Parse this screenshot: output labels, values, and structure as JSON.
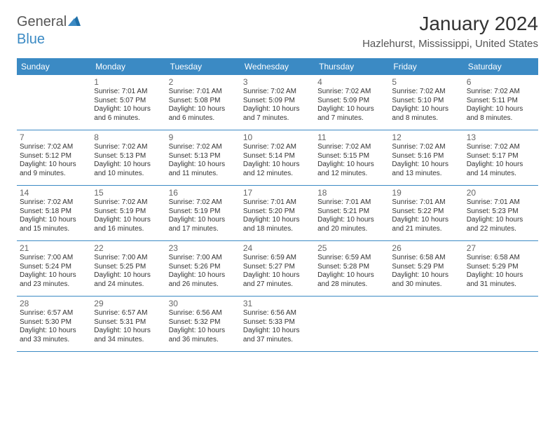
{
  "logo": {
    "word1": "General",
    "word2": "Blue"
  },
  "title": "January 2024",
  "location": "Hazlehurst, Mississippi, United States",
  "colors": {
    "accent": "#3b8ac4",
    "text": "#333333",
    "muted": "#666666",
    "background": "#ffffff"
  },
  "daysOfWeek": [
    "Sunday",
    "Monday",
    "Tuesday",
    "Wednesday",
    "Thursday",
    "Friday",
    "Saturday"
  ],
  "weeks": [
    [
      {
        "n": "",
        "sr": "",
        "ss": "",
        "dl1": "",
        "dl2": ""
      },
      {
        "n": "1",
        "sr": "Sunrise: 7:01 AM",
        "ss": "Sunset: 5:07 PM",
        "dl1": "Daylight: 10 hours",
        "dl2": "and 6 minutes."
      },
      {
        "n": "2",
        "sr": "Sunrise: 7:01 AM",
        "ss": "Sunset: 5:08 PM",
        "dl1": "Daylight: 10 hours",
        "dl2": "and 6 minutes."
      },
      {
        "n": "3",
        "sr": "Sunrise: 7:02 AM",
        "ss": "Sunset: 5:09 PM",
        "dl1": "Daylight: 10 hours",
        "dl2": "and 7 minutes."
      },
      {
        "n": "4",
        "sr": "Sunrise: 7:02 AM",
        "ss": "Sunset: 5:09 PM",
        "dl1": "Daylight: 10 hours",
        "dl2": "and 7 minutes."
      },
      {
        "n": "5",
        "sr": "Sunrise: 7:02 AM",
        "ss": "Sunset: 5:10 PM",
        "dl1": "Daylight: 10 hours",
        "dl2": "and 8 minutes."
      },
      {
        "n": "6",
        "sr": "Sunrise: 7:02 AM",
        "ss": "Sunset: 5:11 PM",
        "dl1": "Daylight: 10 hours",
        "dl2": "and 8 minutes."
      }
    ],
    [
      {
        "n": "7",
        "sr": "Sunrise: 7:02 AM",
        "ss": "Sunset: 5:12 PM",
        "dl1": "Daylight: 10 hours",
        "dl2": "and 9 minutes."
      },
      {
        "n": "8",
        "sr": "Sunrise: 7:02 AM",
        "ss": "Sunset: 5:13 PM",
        "dl1": "Daylight: 10 hours",
        "dl2": "and 10 minutes."
      },
      {
        "n": "9",
        "sr": "Sunrise: 7:02 AM",
        "ss": "Sunset: 5:13 PM",
        "dl1": "Daylight: 10 hours",
        "dl2": "and 11 minutes."
      },
      {
        "n": "10",
        "sr": "Sunrise: 7:02 AM",
        "ss": "Sunset: 5:14 PM",
        "dl1": "Daylight: 10 hours",
        "dl2": "and 12 minutes."
      },
      {
        "n": "11",
        "sr": "Sunrise: 7:02 AM",
        "ss": "Sunset: 5:15 PM",
        "dl1": "Daylight: 10 hours",
        "dl2": "and 12 minutes."
      },
      {
        "n": "12",
        "sr": "Sunrise: 7:02 AM",
        "ss": "Sunset: 5:16 PM",
        "dl1": "Daylight: 10 hours",
        "dl2": "and 13 minutes."
      },
      {
        "n": "13",
        "sr": "Sunrise: 7:02 AM",
        "ss": "Sunset: 5:17 PM",
        "dl1": "Daylight: 10 hours",
        "dl2": "and 14 minutes."
      }
    ],
    [
      {
        "n": "14",
        "sr": "Sunrise: 7:02 AM",
        "ss": "Sunset: 5:18 PM",
        "dl1": "Daylight: 10 hours",
        "dl2": "and 15 minutes."
      },
      {
        "n": "15",
        "sr": "Sunrise: 7:02 AM",
        "ss": "Sunset: 5:19 PM",
        "dl1": "Daylight: 10 hours",
        "dl2": "and 16 minutes."
      },
      {
        "n": "16",
        "sr": "Sunrise: 7:02 AM",
        "ss": "Sunset: 5:19 PM",
        "dl1": "Daylight: 10 hours",
        "dl2": "and 17 minutes."
      },
      {
        "n": "17",
        "sr": "Sunrise: 7:01 AM",
        "ss": "Sunset: 5:20 PM",
        "dl1": "Daylight: 10 hours",
        "dl2": "and 18 minutes."
      },
      {
        "n": "18",
        "sr": "Sunrise: 7:01 AM",
        "ss": "Sunset: 5:21 PM",
        "dl1": "Daylight: 10 hours",
        "dl2": "and 20 minutes."
      },
      {
        "n": "19",
        "sr": "Sunrise: 7:01 AM",
        "ss": "Sunset: 5:22 PM",
        "dl1": "Daylight: 10 hours",
        "dl2": "and 21 minutes."
      },
      {
        "n": "20",
        "sr": "Sunrise: 7:01 AM",
        "ss": "Sunset: 5:23 PM",
        "dl1": "Daylight: 10 hours",
        "dl2": "and 22 minutes."
      }
    ],
    [
      {
        "n": "21",
        "sr": "Sunrise: 7:00 AM",
        "ss": "Sunset: 5:24 PM",
        "dl1": "Daylight: 10 hours",
        "dl2": "and 23 minutes."
      },
      {
        "n": "22",
        "sr": "Sunrise: 7:00 AM",
        "ss": "Sunset: 5:25 PM",
        "dl1": "Daylight: 10 hours",
        "dl2": "and 24 minutes."
      },
      {
        "n": "23",
        "sr": "Sunrise: 7:00 AM",
        "ss": "Sunset: 5:26 PM",
        "dl1": "Daylight: 10 hours",
        "dl2": "and 26 minutes."
      },
      {
        "n": "24",
        "sr": "Sunrise: 6:59 AM",
        "ss": "Sunset: 5:27 PM",
        "dl1": "Daylight: 10 hours",
        "dl2": "and 27 minutes."
      },
      {
        "n": "25",
        "sr": "Sunrise: 6:59 AM",
        "ss": "Sunset: 5:28 PM",
        "dl1": "Daylight: 10 hours",
        "dl2": "and 28 minutes."
      },
      {
        "n": "26",
        "sr": "Sunrise: 6:58 AM",
        "ss": "Sunset: 5:29 PM",
        "dl1": "Daylight: 10 hours",
        "dl2": "and 30 minutes."
      },
      {
        "n": "27",
        "sr": "Sunrise: 6:58 AM",
        "ss": "Sunset: 5:29 PM",
        "dl1": "Daylight: 10 hours",
        "dl2": "and 31 minutes."
      }
    ],
    [
      {
        "n": "28",
        "sr": "Sunrise: 6:57 AM",
        "ss": "Sunset: 5:30 PM",
        "dl1": "Daylight: 10 hours",
        "dl2": "and 33 minutes."
      },
      {
        "n": "29",
        "sr": "Sunrise: 6:57 AM",
        "ss": "Sunset: 5:31 PM",
        "dl1": "Daylight: 10 hours",
        "dl2": "and 34 minutes."
      },
      {
        "n": "30",
        "sr": "Sunrise: 6:56 AM",
        "ss": "Sunset: 5:32 PM",
        "dl1": "Daylight: 10 hours",
        "dl2": "and 36 minutes."
      },
      {
        "n": "31",
        "sr": "Sunrise: 6:56 AM",
        "ss": "Sunset: 5:33 PM",
        "dl1": "Daylight: 10 hours",
        "dl2": "and 37 minutes."
      },
      {
        "n": "",
        "sr": "",
        "ss": "",
        "dl1": "",
        "dl2": ""
      },
      {
        "n": "",
        "sr": "",
        "ss": "",
        "dl1": "",
        "dl2": ""
      },
      {
        "n": "",
        "sr": "",
        "ss": "",
        "dl1": "",
        "dl2": ""
      }
    ]
  ]
}
